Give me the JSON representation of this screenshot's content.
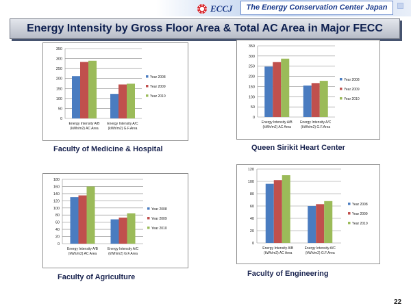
{
  "header": {
    "logo_text": "ECCJ",
    "organization": "The Energy Conservation Center Japan"
  },
  "title": "Energy Intensity by Gross Floor Area & Total AC Area in Major FECC",
  "page_number": "22",
  "colors": {
    "Year 2008": "#4a7cc0",
    "Year 2009": "#c0504d",
    "Year 2010": "#9bbb59"
  },
  "chart_data": [
    {
      "type": "bar",
      "caption": "Faculty of Medicine & Hospital",
      "categories": [
        "Energy Intensity A/B (kWh/m2) AC Area",
        "Energy Intensity A/C (kWh/m2) G.F.Area"
      ],
      "category_lines": [
        [
          "Energy Intensity A/B",
          "(kWh/m2) AC Area"
        ],
        [
          "Energy Intensity A/C",
          "(kWh/m2) G.F.Area"
        ]
      ],
      "series": [
        {
          "name": "Year 2008",
          "values": [
            212,
            123
          ]
        },
        {
          "name": "Year 2009",
          "values": [
            283,
            170
          ]
        },
        {
          "name": "Year 2010",
          "values": [
            289,
            174
          ]
        }
      ],
      "ylim": [
        0,
        350
      ],
      "yticks": [
        0,
        50,
        100,
        150,
        200,
        250,
        300,
        350
      ],
      "grid": true,
      "legend": "right"
    },
    {
      "type": "bar",
      "caption": "Queen Sirikit Heart Center",
      "categories": [
        "Energy Intensity A/B (kWh/m2) AC Area",
        "Energy Intensity A/C (kWh/m2) G.F.Area"
      ],
      "category_lines": [
        [
          "Energy Intensity A/B",
          "(kWh/m2) AC Area"
        ],
        [
          "Energy Intensity A/C",
          "(kWh/m2) G.F.Area"
        ]
      ],
      "series": [
        {
          "name": "Year 2008",
          "values": [
            248,
            155
          ]
        },
        {
          "name": "Year 2009",
          "values": [
            270,
            167
          ]
        },
        {
          "name": "Year 2010",
          "values": [
            287,
            178
          ]
        }
      ],
      "ylim": [
        0,
        350
      ],
      "yticks": [
        0,
        50,
        100,
        150,
        200,
        250,
        300,
        350
      ],
      "grid": true,
      "legend": "right"
    },
    {
      "type": "bar",
      "caption": "Faculty of Agriculture",
      "categories": [
        "Energy Intensity A/B (kWh/m2) AC Area",
        "Energy Intensity A/C (kWh/m2) G.F.Area"
      ],
      "category_lines": [
        [
          "Energy Intensity A/B",
          "(kWh/m2) AC Area"
        ],
        [
          "Energy Intensity A/C",
          "(kWh/m2) G.F.Area"
        ]
      ],
      "series": [
        {
          "name": "Year 2008",
          "values": [
            130,
            68
          ]
        },
        {
          "name": "Year 2009",
          "values": [
            135,
            73
          ]
        },
        {
          "name": "Year 2010",
          "values": [
            160,
            85
          ]
        }
      ],
      "ylim": [
        0,
        180
      ],
      "yticks": [
        0,
        20,
        40,
        60,
        80,
        100,
        120,
        140,
        160,
        180
      ],
      "grid": true,
      "legend": "right"
    },
    {
      "type": "bar",
      "caption": "Faculty of Engineering",
      "categories": [
        "Energy Intensity A/B (kWh/m2) AC Area",
        "Energy Intensity A/C (kWh/m2) G.F.Area"
      ],
      "category_lines": [
        [
          "Energy Intensity A/B",
          "(kWh/m2) AC Area"
        ],
        [
          "Energy Intensity A/C",
          "(kWh/m2) G.F.Area"
        ]
      ],
      "series": [
        {
          "name": "Year 2008",
          "values": [
            96,
            60
          ]
        },
        {
          "name": "Year 2009",
          "values": [
            102,
            63
          ]
        },
        {
          "name": "Year 2010",
          "values": [
            110,
            68
          ]
        }
      ],
      "ylim": [
        0,
        120
      ],
      "yticks": [
        0,
        20,
        40,
        60,
        80,
        100,
        120
      ],
      "grid": true,
      "legend": "right"
    }
  ]
}
